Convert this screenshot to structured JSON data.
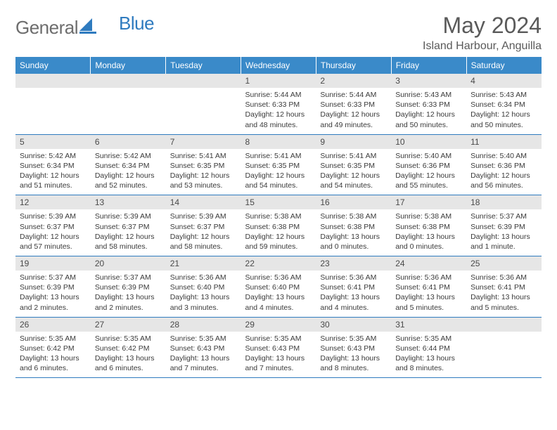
{
  "logo": {
    "general": "General",
    "blue": "Blue"
  },
  "title": "May 2024",
  "location": "Island Harbour, Anguilla",
  "colors": {
    "header_bg": "#3a8ac9",
    "header_text": "#ffffff",
    "daynum_bg": "#e6e6e6",
    "rule": "#2f7bbf",
    "text": "#3a3a3a",
    "title_text": "#5a5a5a",
    "logo_gray": "#6d6d6d",
    "logo_blue": "#2f7bbf"
  },
  "day_names": [
    "Sunday",
    "Monday",
    "Tuesday",
    "Wednesday",
    "Thursday",
    "Friday",
    "Saturday"
  ],
  "weeks": [
    [
      {
        "n": "",
        "sun": "",
        "set": "",
        "dl": ""
      },
      {
        "n": "",
        "sun": "",
        "set": "",
        "dl": ""
      },
      {
        "n": "",
        "sun": "",
        "set": "",
        "dl": ""
      },
      {
        "n": "1",
        "sun": "5:44 AM",
        "set": "6:33 PM",
        "dl": "12 hours and 48 minutes."
      },
      {
        "n": "2",
        "sun": "5:44 AM",
        "set": "6:33 PM",
        "dl": "12 hours and 49 minutes."
      },
      {
        "n": "3",
        "sun": "5:43 AM",
        "set": "6:33 PM",
        "dl": "12 hours and 50 minutes."
      },
      {
        "n": "4",
        "sun": "5:43 AM",
        "set": "6:34 PM",
        "dl": "12 hours and 50 minutes."
      }
    ],
    [
      {
        "n": "5",
        "sun": "5:42 AM",
        "set": "6:34 PM",
        "dl": "12 hours and 51 minutes."
      },
      {
        "n": "6",
        "sun": "5:42 AM",
        "set": "6:34 PM",
        "dl": "12 hours and 52 minutes."
      },
      {
        "n": "7",
        "sun": "5:41 AM",
        "set": "6:35 PM",
        "dl": "12 hours and 53 minutes."
      },
      {
        "n": "8",
        "sun": "5:41 AM",
        "set": "6:35 PM",
        "dl": "12 hours and 54 minutes."
      },
      {
        "n": "9",
        "sun": "5:41 AM",
        "set": "6:35 PM",
        "dl": "12 hours and 54 minutes."
      },
      {
        "n": "10",
        "sun": "5:40 AM",
        "set": "6:36 PM",
        "dl": "12 hours and 55 minutes."
      },
      {
        "n": "11",
        "sun": "5:40 AM",
        "set": "6:36 PM",
        "dl": "12 hours and 56 minutes."
      }
    ],
    [
      {
        "n": "12",
        "sun": "5:39 AM",
        "set": "6:37 PM",
        "dl": "12 hours and 57 minutes."
      },
      {
        "n": "13",
        "sun": "5:39 AM",
        "set": "6:37 PM",
        "dl": "12 hours and 58 minutes."
      },
      {
        "n": "14",
        "sun": "5:39 AM",
        "set": "6:37 PM",
        "dl": "12 hours and 58 minutes."
      },
      {
        "n": "15",
        "sun": "5:38 AM",
        "set": "6:38 PM",
        "dl": "12 hours and 59 minutes."
      },
      {
        "n": "16",
        "sun": "5:38 AM",
        "set": "6:38 PM",
        "dl": "13 hours and 0 minutes."
      },
      {
        "n": "17",
        "sun": "5:38 AM",
        "set": "6:38 PM",
        "dl": "13 hours and 0 minutes."
      },
      {
        "n": "18",
        "sun": "5:37 AM",
        "set": "6:39 PM",
        "dl": "13 hours and 1 minute."
      }
    ],
    [
      {
        "n": "19",
        "sun": "5:37 AM",
        "set": "6:39 PM",
        "dl": "13 hours and 2 minutes."
      },
      {
        "n": "20",
        "sun": "5:37 AM",
        "set": "6:39 PM",
        "dl": "13 hours and 2 minutes."
      },
      {
        "n": "21",
        "sun": "5:36 AM",
        "set": "6:40 PM",
        "dl": "13 hours and 3 minutes."
      },
      {
        "n": "22",
        "sun": "5:36 AM",
        "set": "6:40 PM",
        "dl": "13 hours and 4 minutes."
      },
      {
        "n": "23",
        "sun": "5:36 AM",
        "set": "6:41 PM",
        "dl": "13 hours and 4 minutes."
      },
      {
        "n": "24",
        "sun": "5:36 AM",
        "set": "6:41 PM",
        "dl": "13 hours and 5 minutes."
      },
      {
        "n": "25",
        "sun": "5:36 AM",
        "set": "6:41 PM",
        "dl": "13 hours and 5 minutes."
      }
    ],
    [
      {
        "n": "26",
        "sun": "5:35 AM",
        "set": "6:42 PM",
        "dl": "13 hours and 6 minutes."
      },
      {
        "n": "27",
        "sun": "5:35 AM",
        "set": "6:42 PM",
        "dl": "13 hours and 6 minutes."
      },
      {
        "n": "28",
        "sun": "5:35 AM",
        "set": "6:43 PM",
        "dl": "13 hours and 7 minutes."
      },
      {
        "n": "29",
        "sun": "5:35 AM",
        "set": "6:43 PM",
        "dl": "13 hours and 7 minutes."
      },
      {
        "n": "30",
        "sun": "5:35 AM",
        "set": "6:43 PM",
        "dl": "13 hours and 8 minutes."
      },
      {
        "n": "31",
        "sun": "5:35 AM",
        "set": "6:44 PM",
        "dl": "13 hours and 8 minutes."
      },
      {
        "n": "",
        "sun": "",
        "set": "",
        "dl": ""
      }
    ]
  ],
  "labels": {
    "sunrise": "Sunrise: ",
    "sunset": "Sunset: ",
    "daylight": "Daylight: "
  }
}
